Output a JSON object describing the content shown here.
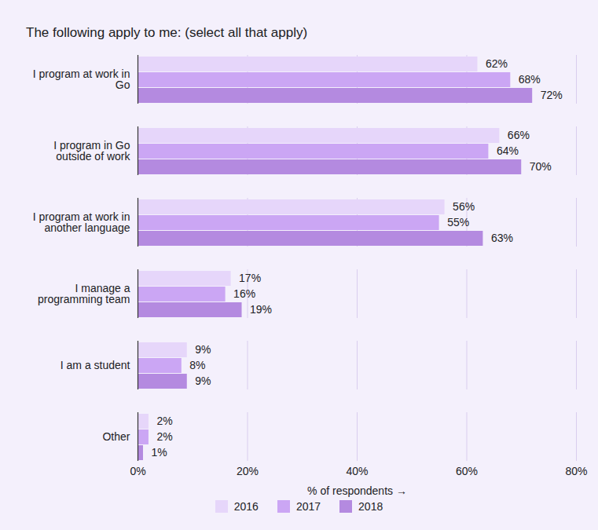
{
  "chart_data": {
    "type": "bar",
    "orientation": "horizontal",
    "title": "The following apply to me: (select all that apply)",
    "x_label": "% of respondents",
    "categories": [
      "I program at work in Go",
      "I program in Go outside of work",
      "I program at work in another language",
      "I manage a programming team",
      "I am a student",
      "Other"
    ],
    "series": [
      {
        "name": "2016",
        "color": "#e6d6fa",
        "values": [
          62,
          66,
          56,
          17,
          9,
          2
        ],
        "value_labels": [
          "62%",
          "66%",
          "56%",
          "17%",
          "9%",
          "2%"
        ]
      },
      {
        "name": "2017",
        "color": "#cba6f4",
        "values": [
          68,
          64,
          55,
          16,
          8,
          2
        ],
        "value_labels": [
          "68%",
          "64%",
          "55%",
          "16%",
          "8%",
          "2%"
        ]
      },
      {
        "name": "2018",
        "color": "#b48ae0",
        "values": [
          72,
          70,
          63,
          19,
          9,
          1
        ],
        "value_labels": [
          "72%",
          "70%",
          "63%",
          "19%",
          "9%",
          "1%"
        ]
      }
    ],
    "xlim": [
      0,
      80
    ],
    "xticks": [
      {
        "value": 0,
        "label": "0%"
      },
      {
        "value": 20,
        "label": "20%"
      },
      {
        "value": 40,
        "label": "40%"
      },
      {
        "value": 60,
        "label": "60%"
      },
      {
        "value": 80,
        "label": "80%"
      }
    ],
    "grid": true,
    "data_labels": true,
    "legend": "bottom"
  }
}
